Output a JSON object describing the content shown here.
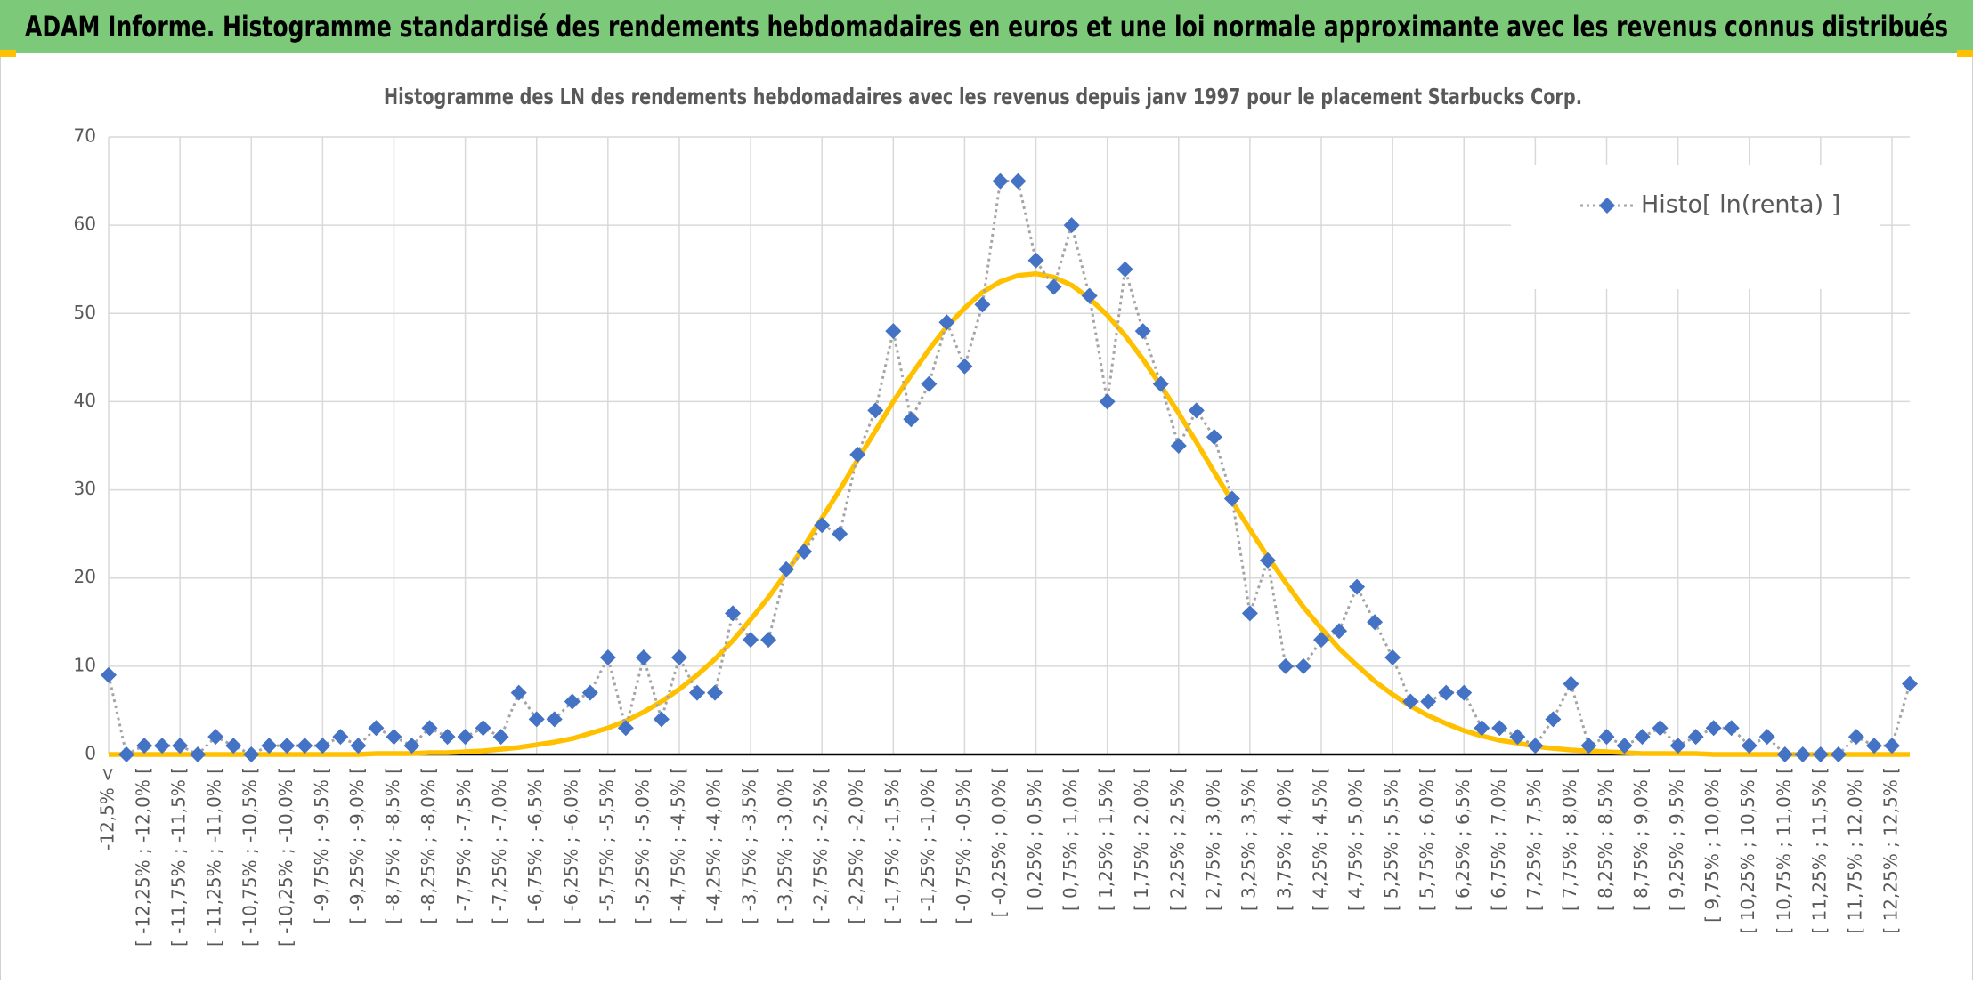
{
  "header": {
    "title": "ADAM Informe. Histogramme standardisé des rendements hebdomadaires en euros et une loi normale approximante avec les revenus connus distribués"
  },
  "chart_data": {
    "type": "line",
    "title": "Histogramme des LN des rendements hebdomadaires avec les revenus depuis janv 1997 pour le placement Starbucks Corp.",
    "categories": [
      "-12,5% <",
      null,
      "[ -12,25% ; -12,0% [",
      null,
      "[ -11,75% ; -11,5% [",
      null,
      "[ -11,25% ; -11,0% [",
      null,
      "[ -10,75% ; -10,5% [",
      null,
      "[ -10,25% ; -10,0% [",
      null,
      "[ -9,75% ; -9,5% [",
      null,
      "[ -9,25% ; -9,0% [",
      null,
      "[ -8,75% ; -8,5% [",
      null,
      "[ -8,25% ; -8,0% [",
      null,
      "[ -7,75% ; -7,5% [",
      null,
      "[ -7,25% ; -7,0% [",
      null,
      "[ -6,75% ; -6,5% [",
      null,
      "[ -6,25% ; -6,0% [",
      null,
      "[ -5,75% ; -5,5% [",
      null,
      "[ -5,25% ; -5,0% [",
      null,
      "[ -4,75% ; -4,5% [",
      null,
      "[ -4,25% ; -4,0% [",
      null,
      "[ -3,75% ; -3,5% [",
      null,
      "[ -3,25% ; -3,0% [",
      null,
      "[ -2,75% ; -2,5% [",
      null,
      "[ -2,25% ; -2,0% [",
      null,
      "[ -1,75% ; -1,5% [",
      null,
      "[ -1,25% ; -1,0% [",
      null,
      "[ -0,75% ; -0,5% [",
      null,
      "[ -0,25% ; 0,0% [",
      null,
      "[ 0,25% ; 0,5% [",
      null,
      "[ 0,75% ; 1,0% [",
      null,
      "[ 1,25% ; 1,5% [",
      null,
      "[ 1,75% ; 2,0% [",
      null,
      "[ 2,25% ; 2,5% [",
      null,
      "[ 2,75% ; 3,0% [",
      null,
      "[ 3,25% ; 3,5% [",
      null,
      "[ 3,75% ; 4,0% [",
      null,
      "[ 4,25% ; 4,5% [",
      null,
      "[ 4,75% ; 5,0% [",
      null,
      "[ 5,25% ; 5,5% [",
      null,
      "[ 5,75% ; 6,0% [",
      null,
      "[ 6,25% ; 6,5% [",
      null,
      "[ 6,75% ; 7,0% [",
      null,
      "[ 7,25% ; 7,5% [",
      null,
      "[ 7,75% ; 8,0% [",
      null,
      "[ 8,25% ; 8,5% [",
      null,
      "[ 8,75% ; 9,0% [",
      null,
      "[ 9,25% ; 9,5% [",
      null,
      "[ 9,75% ; 10,0% [",
      null,
      "[ 10,25% ; 10,5% [",
      null,
      "[ 10,75% ; 11,0% [",
      null,
      "[ 11,25% ; 11,5% [",
      null,
      "[ 11,75% ; 12,0% [",
      null,
      "[ 12,25% ; 12,5% [",
      null
    ],
    "series": [
      {
        "name": "Histo[ ln(renta) ]",
        "color": "#4472c4",
        "line_color": "#a5a5a5",
        "marker": "diamond",
        "line": "dotted",
        "values": [
          9,
          0,
          1,
          1,
          1,
          0,
          2,
          1,
          0,
          1,
          1,
          1,
          1,
          2,
          1,
          3,
          2,
          1,
          3,
          2,
          2,
          3,
          2,
          7,
          4,
          4,
          6,
          7,
          11,
          3,
          11,
          4,
          11,
          7,
          7,
          16,
          13,
          13,
          21,
          23,
          26,
          25,
          34,
          39,
          48,
          38,
          42,
          49,
          44,
          51,
          65,
          65,
          56,
          53,
          60,
          52,
          40,
          55,
          48,
          42,
          35,
          39,
          36,
          29,
          16,
          22,
          10,
          10,
          13,
          14,
          19,
          15,
          11,
          6,
          6,
          7,
          7,
          3,
          3,
          2,
          1,
          4,
          8,
          1,
          2,
          1,
          2,
          3,
          1,
          2,
          3,
          3,
          1,
          2,
          0,
          0,
          0,
          0,
          2,
          1,
          1,
          8
        ]
      },
      {
        "color": "#ffc000",
        "line": "solid",
        "values": [
          0,
          0,
          0,
          0,
          0,
          0,
          0,
          0,
          0,
          0,
          0,
          0,
          0,
          0,
          0,
          0.1,
          0.1,
          0.1,
          0.2,
          0.2,
          0.3,
          0.4,
          0.6,
          0.8,
          1.1,
          1.4,
          1.8,
          2.4,
          3.0,
          3.8,
          4.8,
          6.0,
          7.4,
          9.0,
          10.8,
          12.9,
          15.3,
          17.8,
          20.6,
          23.6,
          26.8,
          30.0,
          33.4,
          36.7,
          40.0,
          43.0,
          45.9,
          48.5,
          50.6,
          52.4,
          53.6,
          54.3,
          54.5,
          54.1,
          53.2,
          51.7,
          49.8,
          47.5,
          44.8,
          41.8,
          38.7,
          35.4,
          32.0,
          28.7,
          25.5,
          22.4,
          19.5,
          16.7,
          14.3,
          12.0,
          10.1,
          8.3,
          6.8,
          5.5,
          4.4,
          3.5,
          2.7,
          2.1,
          1.6,
          1.3,
          0.9,
          0.7,
          0.5,
          0.4,
          0.3,
          0.2,
          0.1,
          0.1,
          0.1,
          0.1,
          0,
          0,
          0,
          0,
          0,
          0,
          0,
          0,
          0,
          0,
          0,
          0
        ]
      }
    ],
    "ylim": [
      0,
      70
    ],
    "yticks": [
      0,
      10,
      20,
      30,
      40,
      50,
      60,
      70
    ],
    "grid": true,
    "legend": "upper right"
  }
}
